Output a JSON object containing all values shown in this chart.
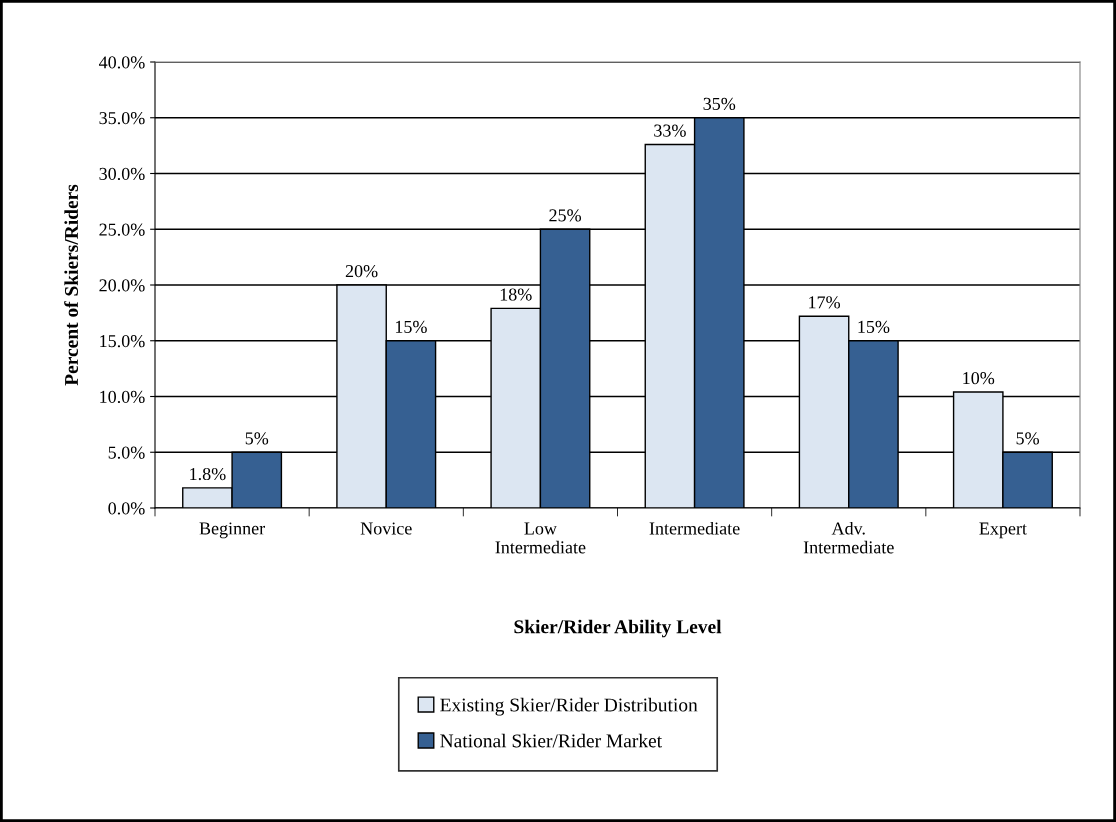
{
  "chart_data": {
    "type": "bar",
    "xlabel": "Skier/Rider Ability Level",
    "ylabel": "Percent of Skiers/Riders",
    "categories": [
      "Beginner",
      "Novice",
      "Low\nIntermediate",
      "Intermediate",
      "Adv.\nIntermediate",
      "Expert"
    ],
    "series": [
      {
        "name": "Existing Skier/Rider Distribution",
        "color": "#dce6f2",
        "values": [
          1.8,
          20,
          17.9,
          32.6,
          17.2,
          10.4
        ],
        "value_labels": [
          "1.8%",
          "20%",
          "18%",
          "33%",
          "17%",
          "10%"
        ]
      },
      {
        "name": "National Skier/Rider Market",
        "color": "#366092",
        "values": [
          5,
          15,
          25,
          35,
          15,
          5
        ],
        "value_labels": [
          "5%",
          "15%",
          "25%",
          "35%",
          "15%",
          "5%"
        ]
      }
    ],
    "ylim": [
      0,
      40
    ],
    "yticks": [
      {
        "value": 0,
        "label": "0.0%"
      },
      {
        "value": 5,
        "label": "5.0%"
      },
      {
        "value": 10,
        "label": "10.0%"
      },
      {
        "value": 15,
        "label": "15.0%"
      },
      {
        "value": 20,
        "label": "20.0%"
      },
      {
        "value": 25,
        "label": "25.0%"
      },
      {
        "value": 30,
        "label": "30.0%"
      },
      {
        "value": 35,
        "label": "35.0%"
      },
      {
        "value": 40,
        "label": "40.0%"
      }
    ],
    "grid": "y",
    "legend": "bottom"
  }
}
